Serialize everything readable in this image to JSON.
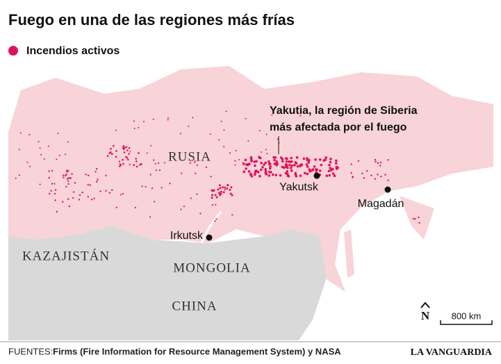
{
  "title": "Fuego en una de las regiones más frías",
  "legend": {
    "label": "Incendios activos",
    "color": "#e0115f"
  },
  "annotation": [
    "Yakutia, la región de Siberia",
    "más afectada por el fuego"
  ],
  "countries": [
    "RUSIA",
    "KAZAJISTÁN",
    "MONGOLIA",
    "CHINA"
  ],
  "cities": [
    "Yakutsk",
    "Magadán",
    "Irkutsk"
  ],
  "north": "N",
  "scale": "800 km",
  "footer": {
    "sources_label": "FUENTES:",
    "sources": "Firms (Fire Information for Resource Management System) y NASA",
    "brand": "LA VANGUARDIA"
  }
}
